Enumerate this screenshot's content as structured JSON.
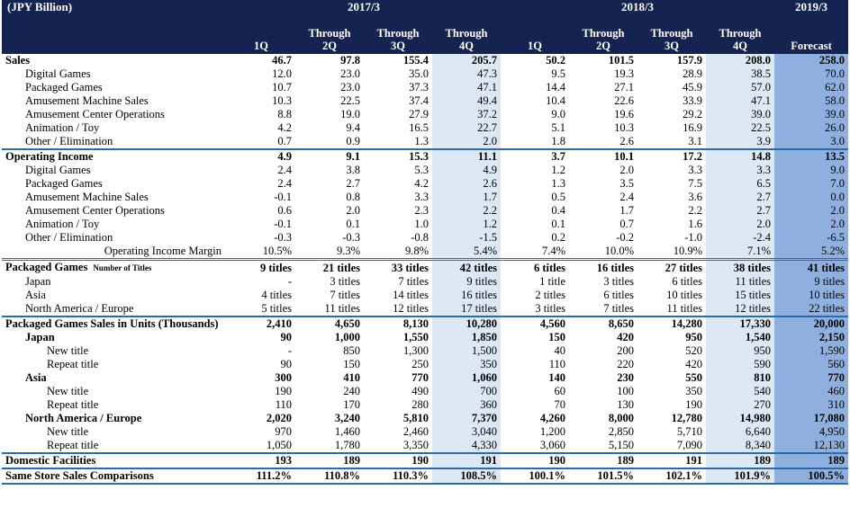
{
  "header": {
    "unit": "(JPY Billion)",
    "years": [
      "2017/3",
      "2018/3",
      "2019/3"
    ],
    "columns": [
      "1Q",
      "Through\n2Q",
      "Through\n3Q",
      "Through\n4Q",
      "1Q",
      "Through\n2Q",
      "Through\n3Q",
      "Through\n4Q",
      "Forecast"
    ]
  },
  "rows": [
    {
      "label": "Sales",
      "values": [
        "46.7",
        "97.8",
        "155.4",
        "205.7",
        "50.2",
        "101.5",
        "157.9",
        "208.0",
        "258.0"
      ]
    },
    {
      "label": "Digital Games",
      "values": [
        "12.0",
        "23.0",
        "35.0",
        "47.3",
        "9.5",
        "19.3",
        "28.9",
        "38.5",
        "70.0"
      ]
    },
    {
      "label": "Packaged Games",
      "values": [
        "10.7",
        "23.0",
        "37.3",
        "47.1",
        "14.4",
        "27.1",
        "45.9",
        "57.0",
        "62.0"
      ]
    },
    {
      "label": "Amusement Machine Sales",
      "values": [
        "10.3",
        "22.5",
        "37.4",
        "49.4",
        "10.4",
        "22.6",
        "33.9",
        "47.1",
        "58.0"
      ]
    },
    {
      "label": "Amusement Center Operations",
      "values": [
        "8.8",
        "19.0",
        "27.9",
        "37.2",
        "9.0",
        "19.6",
        "29.2",
        "39.0",
        "39.0"
      ]
    },
    {
      "label": "Animation / Toy",
      "values": [
        "4.2",
        "9.4",
        "16.5",
        "22.7",
        "5.1",
        "10.3",
        "16.9",
        "22.5",
        "26.0"
      ]
    },
    {
      "label": "Other / Elimination",
      "values": [
        "0.7",
        "0.9",
        "1.3",
        "2.0",
        "1.8",
        "2.6",
        "3.1",
        "3.9",
        "3.0"
      ]
    },
    {
      "label": "Operating Income",
      "values": [
        "4.9",
        "9.1",
        "15.3",
        "11.1",
        "3.7",
        "10.1",
        "17.2",
        "14.8",
        "13.5"
      ]
    },
    {
      "label": "Digital Games",
      "values": [
        "2.4",
        "3.8",
        "5.3",
        "4.9",
        "1.2",
        "2.0",
        "3.3",
        "3.3",
        "9.0"
      ]
    },
    {
      "label": "Packaged Games",
      "values": [
        "2.4",
        "2.7",
        "4.2",
        "2.6",
        "1.3",
        "3.5",
        "7.5",
        "6.5",
        "7.0"
      ]
    },
    {
      "label": "Amusement Machine Sales",
      "values": [
        "-0.1",
        "0.8",
        "3.3",
        "1.7",
        "0.5",
        "2.4",
        "3.6",
        "2.7",
        "0.0"
      ]
    },
    {
      "label": "Amusement Center Operations",
      "values": [
        "0.6",
        "2.0",
        "2.3",
        "2.2",
        "0.4",
        "1.7",
        "2.2",
        "2.7",
        "2.0"
      ]
    },
    {
      "label": "Animation / Toy",
      "values": [
        "-0.1",
        "0.1",
        "1.0",
        "1.2",
        "0.1",
        "0.7",
        "1.6",
        "2.0",
        "2.0"
      ]
    },
    {
      "label": "Other / Elimination",
      "values": [
        "-0.3",
        "-0.3",
        "-0.8",
        "-1.5",
        "0.2",
        "-0.2",
        "-1.0",
        "-2.4",
        "-6.5"
      ]
    },
    {
      "label": "Operating Income Margin",
      "values": [
        "10.5%",
        "9.3%",
        "9.8%",
        "5.4%",
        "7.4%",
        "10.0%",
        "10.9%",
        "7.1%",
        "5.2%"
      ]
    },
    {
      "label": "Packaged Games",
      "note": "Number of Titles",
      "values": [
        "9 titles",
        "21 titles",
        "33 titles",
        "42 titles",
        "6 titles",
        "16 titles",
        "27 titles",
        "38 titles",
        "41 titles"
      ]
    },
    {
      "label": "Japan",
      "values": [
        "-",
        "3 titles",
        "7 titles",
        "9 titles",
        "1 title",
        "3 titles",
        "6 titles",
        "11 titles",
        "9 titles"
      ]
    },
    {
      "label": "Asia",
      "values": [
        "4 titles",
        "7 titles",
        "14 titles",
        "16 titles",
        "2 titles",
        "6 titles",
        "10 titles",
        "15 titles",
        "10 titles"
      ]
    },
    {
      "label": "North America / Europe",
      "values": [
        "5 titles",
        "11 titles",
        "12 titles",
        "17 titles",
        "3 titles",
        "7 titles",
        "11 titles",
        "12 titles",
        "22 titles"
      ]
    },
    {
      "label": "Packaged Games Sales in Units (Thousands)",
      "values": [
        "2,410",
        "4,650",
        "8,130",
        "10,280",
        "4,560",
        "8,650",
        "14,280",
        "17,330",
        "20,000"
      ]
    },
    {
      "label": "Japan",
      "values": [
        "90",
        "1,000",
        "1,550",
        "1,850",
        "150",
        "420",
        "950",
        "1,540",
        "2,150"
      ]
    },
    {
      "label": "New title",
      "values": [
        "-",
        "850",
        "1,300",
        "1,500",
        "40",
        "200",
        "520",
        "950",
        "1,590"
      ]
    },
    {
      "label": "Repeat title",
      "values": [
        "90",
        "150",
        "250",
        "350",
        "110",
        "220",
        "420",
        "590",
        "560"
      ]
    },
    {
      "label": "Asia",
      "values": [
        "300",
        "410",
        "770",
        "1,060",
        "140",
        "230",
        "550",
        "810",
        "770"
      ]
    },
    {
      "label": "New title",
      "values": [
        "190",
        "240",
        "490",
        "700",
        "60",
        "100",
        "350",
        "540",
        "460"
      ]
    },
    {
      "label": "Repeat title",
      "values": [
        "110",
        "170",
        "280",
        "360",
        "70",
        "130",
        "190",
        "270",
        "310"
      ]
    },
    {
      "label": "North America / Europe",
      "values": [
        "2,020",
        "3,240",
        "5,810",
        "7,370",
        "4,260",
        "8,000",
        "12,780",
        "14,980",
        "17,080"
      ]
    },
    {
      "label": "New title",
      "values": [
        "970",
        "1,460",
        "2,460",
        "3,040",
        "1,200",
        "2,850",
        "5,710",
        "6,640",
        "4,950"
      ]
    },
    {
      "label": "Repeat title",
      "values": [
        "1,050",
        "1,780",
        "3,350",
        "4,330",
        "3,060",
        "5,150",
        "7,090",
        "8,340",
        "12,130"
      ]
    },
    {
      "label": "Domestic Facilities",
      "values": [
        "193",
        "189",
        "190",
        "191",
        "190",
        "189",
        "191",
        "189",
        "189"
      ]
    },
    {
      "label": "Same Store Sales Comparisons",
      "values": [
        "111.2%",
        "110.8%",
        "110.3%",
        "108.5%",
        "100.1%",
        "101.5%",
        "102.1%",
        "101.9%",
        "100.5%"
      ]
    }
  ]
}
